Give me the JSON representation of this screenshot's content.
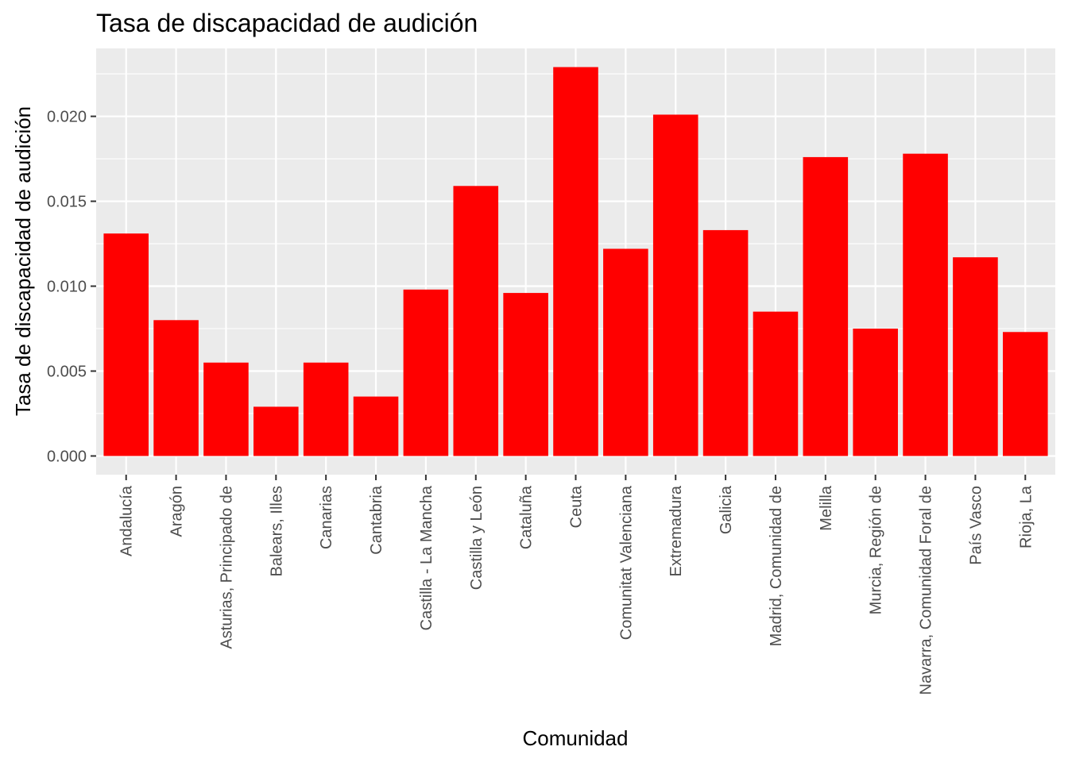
{
  "chart_data": {
    "type": "bar",
    "title": "Tasa de discapacidad de audición",
    "xlabel": "Comunidad",
    "ylabel": "Tasa de discapacidad de audición",
    "ylim": [
      -0.0011,
      0.024
    ],
    "yticks": [
      0.0,
      0.005,
      0.01,
      0.015,
      0.02
    ],
    "ytick_labels": [
      "0.000",
      "0.005",
      "0.010",
      "0.015",
      "0.020"
    ],
    "grid": true,
    "legend": "none",
    "bar_color": "#FF0000",
    "panel_color": "#EBEBEB",
    "categories": [
      "Andalucía",
      "Aragón",
      "Asturias, Principado de",
      "Balears, Illes",
      "Canarias",
      "Cantabria",
      "Castilla - La Mancha",
      "Castilla y León",
      "Cataluña",
      "Ceuta",
      "Comunitat Valenciana",
      "Extremadura",
      "Galicia",
      "Madrid, Comunidad de",
      "Melilla",
      "Murcia, Región de",
      "Navarra, Comunidad Foral de",
      "País Vasco",
      "Rioja, La"
    ],
    "values": [
      0.0131,
      0.008,
      0.0055,
      0.0029,
      0.0055,
      0.0035,
      0.0098,
      0.0159,
      0.0096,
      0.0229,
      0.0122,
      0.0201,
      0.0133,
      0.0085,
      0.0176,
      0.0075,
      0.0178,
      0.0117,
      0.0073
    ]
  }
}
